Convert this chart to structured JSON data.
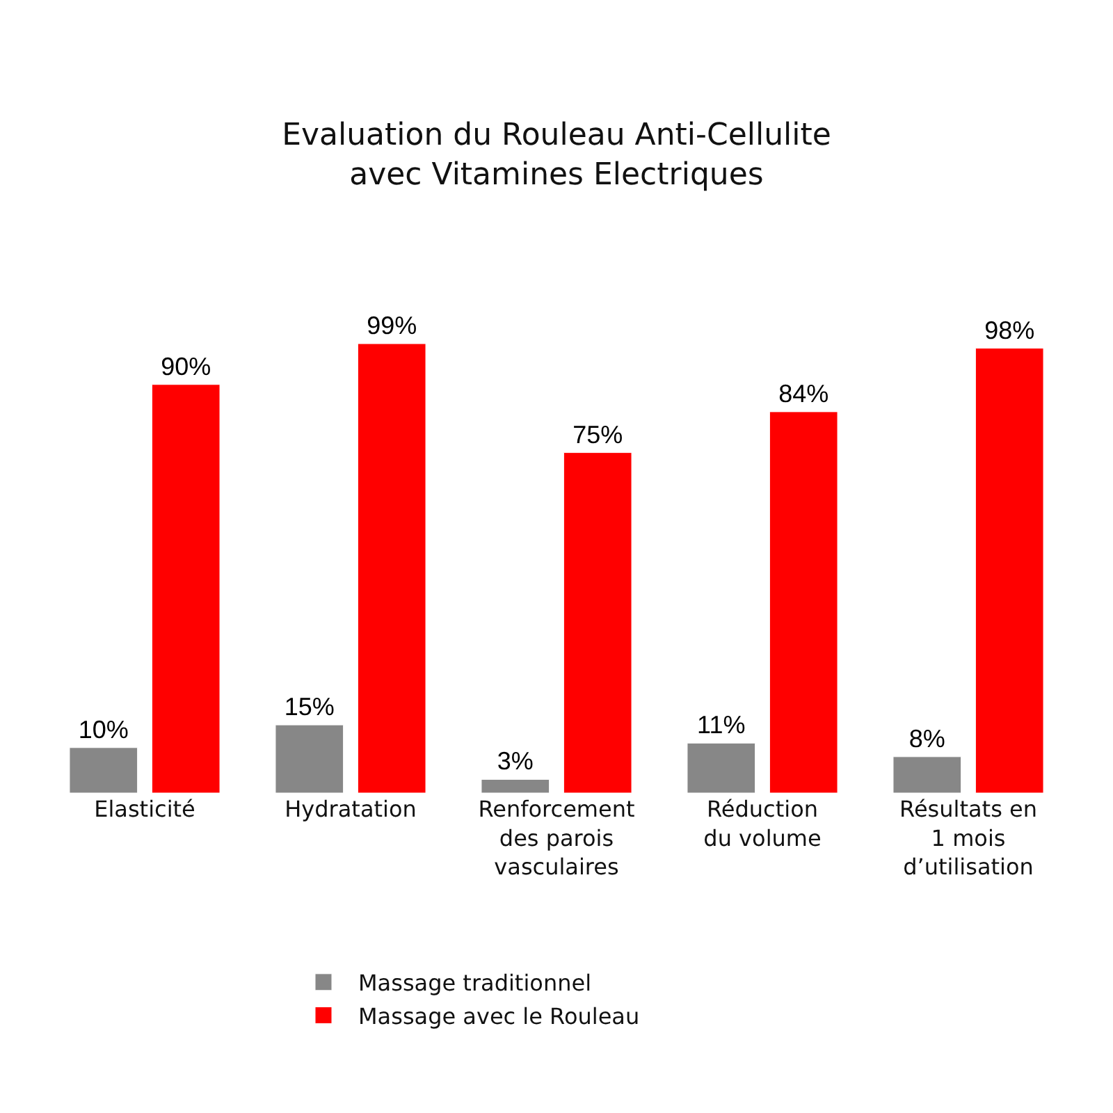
{
  "chart_data": {
    "type": "bar",
    "title": "Evaluation du Rouleau Anti-Cellulite\navec Vitamines Electriques",
    "categories": [
      "Elasticité",
      "Hydratation",
      "Renforcement\ndes parois\nvasculaires",
      "Réduction\ndu volume",
      "Résultats en\n1 mois\nd’utilisation"
    ],
    "series": [
      {
        "name": "Massage traditionnel",
        "color": "#878787",
        "values": [
          10,
          15,
          3,
          11,
          8
        ],
        "value_labels": [
          "10%",
          "15%",
          "3%",
          "11%",
          "8%"
        ]
      },
      {
        "name": "Massage avec le Rouleau",
        "color": "#ff0000",
        "values": [
          90,
          99,
          75,
          84,
          98
        ],
        "value_labels": [
          "90%",
          "99%",
          "75%",
          "84%",
          "98%"
        ]
      }
    ],
    "legend": "bottom",
    "grid": false
  }
}
